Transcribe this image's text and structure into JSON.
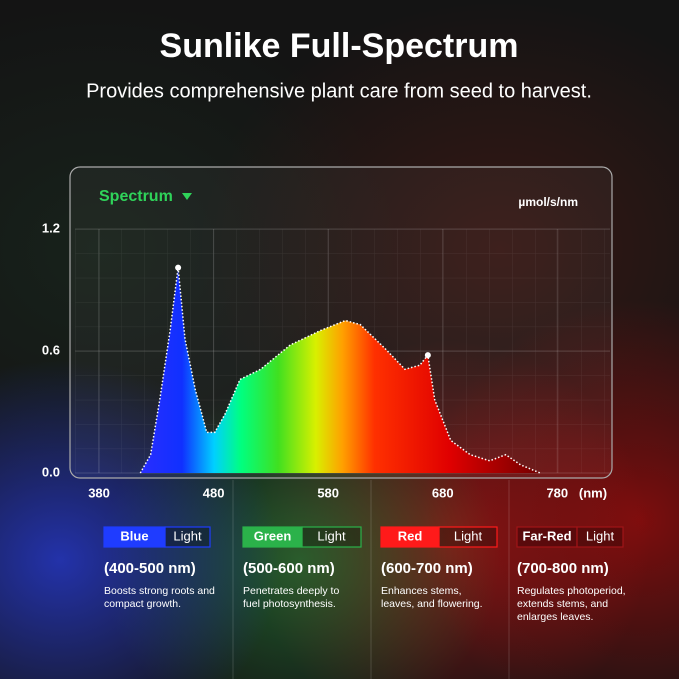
{
  "header": {
    "title": "Sunlike Full-Spectrum",
    "subtitle": "Provides comprehensive plant care from seed to harvest."
  },
  "chart_data": {
    "type": "area",
    "title": "Spectrum",
    "y_label": "µmol/s/nm",
    "x_unit": "(nm)",
    "x": [
      416,
      425,
      433,
      442,
      449,
      455,
      464,
      474,
      481,
      490,
      503,
      521,
      547,
      573,
      595,
      608,
      630,
      647,
      660,
      667,
      673,
      687,
      704,
      721,
      735,
      748,
      765
    ],
    "values": [
      0.0,
      0.09,
      0.36,
      0.7,
      1.01,
      0.66,
      0.41,
      0.2,
      0.2,
      0.29,
      0.46,
      0.51,
      0.63,
      0.7,
      0.75,
      0.73,
      0.61,
      0.51,
      0.53,
      0.58,
      0.36,
      0.16,
      0.09,
      0.06,
      0.09,
      0.04,
      0.0
    ],
    "xlim": [
      359,
      826
    ],
    "xticks": [
      380,
      480,
      580,
      680,
      780
    ],
    "ylim": [
      0,
      1.2
    ],
    "yticks": [
      {
        "value": 0,
        "label": "0.0"
      },
      0.6,
      1.2
    ],
    "grid": true
  },
  "bands": [
    {
      "name": "Blue",
      "suffix": "Light",
      "color": "#1f3cff",
      "fill": "#1f3cff",
      "range": "(400-500 nm)",
      "desc": [
        "Boosts strong roots and",
        "compact growth."
      ]
    },
    {
      "name": "Green",
      "suffix": "Light",
      "color": "#2bb24a",
      "fill": "#2bb24a",
      "range": "(500-600 nm)",
      "desc": [
        "Penetrates deeply to",
        "fuel photosynthesis."
      ]
    },
    {
      "name": "Red",
      "suffix": "Light",
      "color": "#ff1a1a",
      "fill": "#ff1a1a",
      "range": "(600-700 nm)",
      "desc": [
        "Enhances stems,",
        "leaves, and flowering."
      ]
    },
    {
      "name": "Far-Red",
      "suffix": "Light",
      "color": "#a01418",
      "fill": "#5a0a0c",
      "range": "(700-800 nm)",
      "desc": [
        "Regulates photoperiod,",
        "extends stems, and",
        "enlarges leaves."
      ]
    }
  ]
}
